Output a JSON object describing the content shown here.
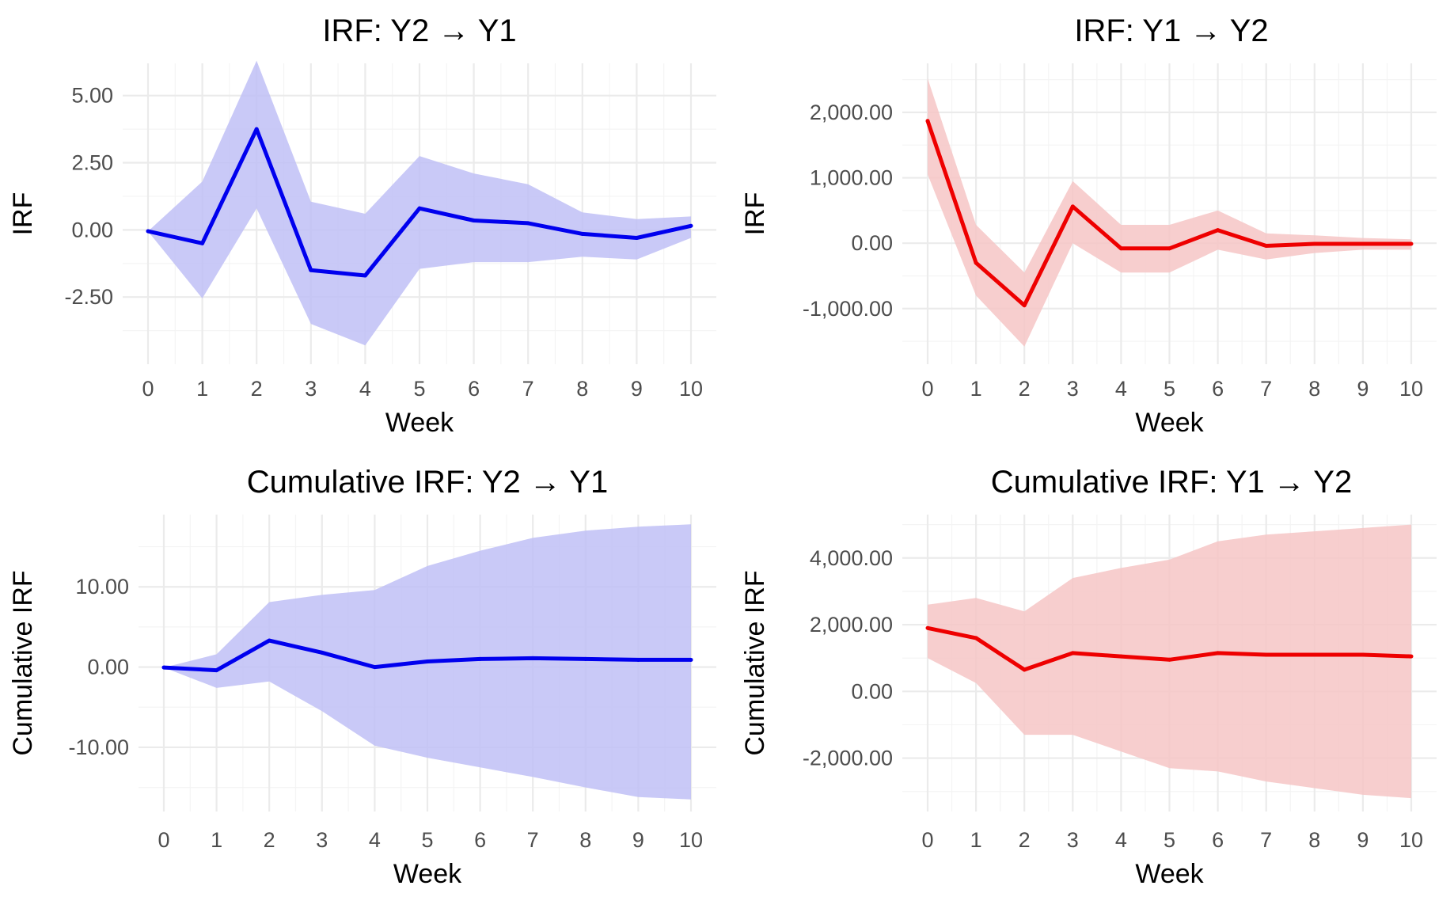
{
  "chart_data": [
    {
      "type": "line",
      "title": "IRF: Y2 → Y1",
      "xlabel": "Week",
      "ylabel": "IRF",
      "x": [
        0,
        1,
        2,
        3,
        4,
        5,
        6,
        7,
        8,
        9,
        10
      ],
      "xtick_labels": [
        "0",
        "1",
        "2",
        "3",
        "4",
        "5",
        "6",
        "7",
        "8",
        "9",
        "10"
      ],
      "yticks": [
        -2.5,
        0,
        2.5,
        5
      ],
      "ytick_labels": [
        "-2.50",
        "0.00",
        "2.50",
        "5.00"
      ],
      "ylim": [
        -5.0,
        6.2
      ],
      "line_color": "#0000ee",
      "band_color": "#bfbff6",
      "series": [
        {
          "name": "IRF",
          "values": [
            -0.05,
            -0.5,
            3.75,
            -1.5,
            -1.7,
            0.8,
            0.35,
            0.25,
            -0.15,
            -0.3,
            0.15
          ]
        },
        {
          "name": "Lower",
          "values": [
            -0.05,
            -2.55,
            0.8,
            -3.5,
            -4.3,
            -1.45,
            -1.2,
            -1.2,
            -1.0,
            -1.1,
            -0.3
          ]
        },
        {
          "name": "Upper",
          "values": [
            -0.05,
            1.8,
            6.3,
            1.05,
            0.6,
            2.75,
            2.1,
            1.7,
            0.65,
            0.4,
            0.5
          ]
        }
      ]
    },
    {
      "type": "line",
      "title": "IRF: Y1 → Y2",
      "xlabel": "Week",
      "ylabel": "IRF",
      "x": [
        0,
        1,
        2,
        3,
        4,
        5,
        6,
        7,
        8,
        9,
        10
      ],
      "xtick_labels": [
        "0",
        "1",
        "2",
        "3",
        "4",
        "5",
        "6",
        "7",
        "8",
        "9",
        "10"
      ],
      "yticks": [
        -1000,
        0,
        1000,
        2000
      ],
      "ytick_labels": [
        "-1,000.00",
        "0.00",
        "1,000.00",
        "2,000.00"
      ],
      "ylim": [
        -1850,
        2750
      ],
      "line_color": "#ee0000",
      "band_color": "#f6c6c6",
      "series": [
        {
          "name": "IRF",
          "values": [
            1870,
            -300,
            -950,
            560,
            -80,
            -80,
            200,
            -40,
            -10,
            -10,
            -10
          ]
        },
        {
          "name": "Lower",
          "values": [
            1050,
            -800,
            -1580,
            0,
            -450,
            -450,
            -100,
            -250,
            -150,
            -100,
            -100
          ]
        },
        {
          "name": "Upper",
          "values": [
            2520,
            280,
            -450,
            950,
            280,
            280,
            500,
            150,
            120,
            80,
            60
          ]
        }
      ]
    },
    {
      "type": "line",
      "title": "Cumulative IRF: Y2 → Y1",
      "xlabel": "Week",
      "ylabel": "Cumulative IRF",
      "x": [
        0,
        1,
        2,
        3,
        4,
        5,
        6,
        7,
        8,
        9,
        10
      ],
      "xtick_labels": [
        "0",
        "1",
        "2",
        "3",
        "4",
        "5",
        "6",
        "7",
        "8",
        "9",
        "10"
      ],
      "yticks": [
        -10,
        0,
        10
      ],
      "ytick_labels": [
        "-10.00",
        "0.00",
        "10.00"
      ],
      "ylim": [
        -18,
        19
      ],
      "line_color": "#0000ee",
      "band_color": "#bfbff6",
      "series": [
        {
          "name": "Cumulative IRF",
          "values": [
            -0.05,
            -0.4,
            3.3,
            1.8,
            0,
            0.7,
            1.0,
            1.1,
            1.0,
            0.9,
            0.9
          ]
        },
        {
          "name": "Lower",
          "values": [
            -0.05,
            -2.6,
            -1.8,
            -5.5,
            -9.8,
            -11.3,
            -12.5,
            -13.7,
            -15.0,
            -16.2,
            -16.5
          ]
        },
        {
          "name": "Upper",
          "values": [
            -0.05,
            1.6,
            8.1,
            9.0,
            9.6,
            12.6,
            14.5,
            16.1,
            17.0,
            17.5,
            17.8
          ]
        }
      ]
    },
    {
      "type": "line",
      "title": "Cumulative IRF: Y1 → Y2",
      "xlabel": "Week",
      "ylabel": "Cumulative IRF",
      "x": [
        0,
        1,
        2,
        3,
        4,
        5,
        6,
        7,
        8,
        9,
        10
      ],
      "xtick_labels": [
        "0",
        "1",
        "2",
        "3",
        "4",
        "5",
        "6",
        "7",
        "8",
        "9",
        "10"
      ],
      "yticks": [
        -2000,
        0,
        2000,
        4000
      ],
      "ytick_labels": [
        "-2,000.00",
        "0.00",
        "2,000.00",
        "4,000.00"
      ],
      "ylim": [
        -3600,
        5300
      ],
      "line_color": "#ee0000",
      "band_color": "#f6c6c6",
      "series": [
        {
          "name": "Cumulative IRF",
          "values": [
            1900,
            1600,
            650,
            1150,
            1050,
            950,
            1150,
            1100,
            1100,
            1100,
            1050
          ]
        },
        {
          "name": "Lower",
          "values": [
            1000,
            250,
            -1300,
            -1300,
            -1800,
            -2300,
            -2400,
            -2700,
            -2900,
            -3100,
            -3200
          ]
        },
        {
          "name": "Upper",
          "values": [
            2600,
            2800,
            2400,
            3400,
            3700,
            3950,
            4500,
            4700,
            4800,
            4900,
            5000
          ]
        }
      ]
    }
  ]
}
